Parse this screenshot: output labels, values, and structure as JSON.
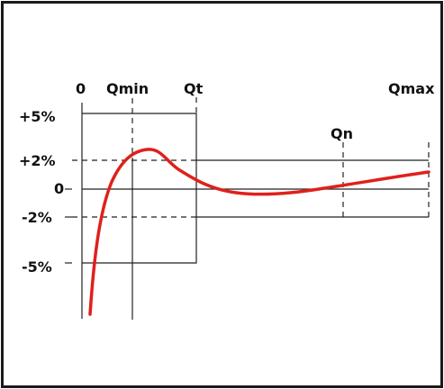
{
  "x_labels": {
    "zero": "0",
    "qmin": "Qmin",
    "qt": "Qt",
    "qn": "Qn",
    "qmax": "Qmax"
  },
  "y_labels": {
    "plus5": "+5%",
    "plus2": "+2%",
    "zero": "0",
    "minus2": "-2%",
    "minus5": "-5%"
  },
  "colors": {
    "curve": "#e0201b",
    "lines": "#222222",
    "frame": "#1a1a1a"
  }
}
